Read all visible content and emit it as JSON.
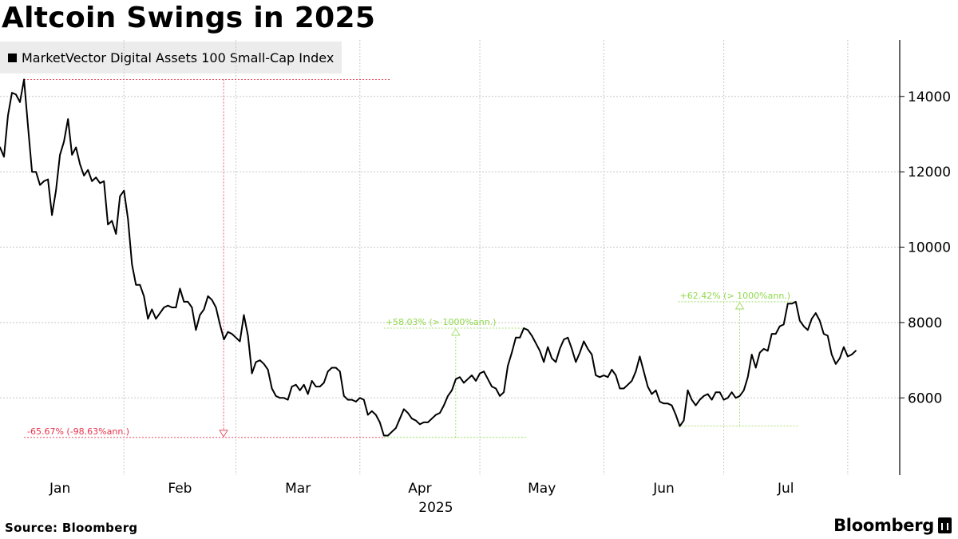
{
  "title": "Altcoin Swings in 2025",
  "legend": {
    "label": "MarketVector Digital Assets 100 Small-Cap Index",
    "swatch_color": "#000000"
  },
  "source": "Source: Bloomberg",
  "brand": "Bloomberg",
  "colors": {
    "line": "#000000",
    "grid": "#c8c8c8",
    "decline": "#e8324a",
    "rally": "#8fd94a"
  },
  "chart_data": {
    "type": "line",
    "title": "Altcoin Swings in 2025",
    "xlabel": "2025",
    "ylabel": "",
    "ylim": [
      3950,
      15500
    ],
    "xlim": [
      1,
      226
    ],
    "x_unit": "day of year 2025",
    "y_ticks": [
      6000,
      8000,
      10000,
      12000,
      14000
    ],
    "y_tick_labels": [
      "6000",
      "8000",
      "10000",
      "12000",
      "14000"
    ],
    "month_boundaries": [
      32,
      60,
      91,
      121,
      152,
      182,
      213
    ],
    "month_labels": [
      {
        "label": "Jan",
        "x": 16
      },
      {
        "label": "Feb",
        "x": 46
      },
      {
        "label": "Mar",
        "x": 75.5
      },
      {
        "label": "Apr",
        "x": 106
      },
      {
        "label": "May",
        "x": 136.5
      },
      {
        "label": "Jun",
        "x": 167
      },
      {
        "label": "Jul",
        "x": 197.5
      }
    ],
    "year_label": "2025",
    "grid": true,
    "legend_position": "top-left",
    "series": [
      {
        "name": "MarketVector Digital Assets 100 Small-Cap Index",
        "color": "#000000",
        "points": [
          [
            1,
            12650
          ],
          [
            2,
            12400
          ],
          [
            3,
            13500
          ],
          [
            4,
            14100
          ],
          [
            5,
            14050
          ],
          [
            6,
            13850
          ],
          [
            7,
            14450
          ],
          [
            8,
            13200
          ],
          [
            9,
            12000
          ],
          [
            10,
            12000
          ],
          [
            11,
            11650
          ],
          [
            12,
            11750
          ],
          [
            13,
            11800
          ],
          [
            14,
            10850
          ],
          [
            15,
            11500
          ],
          [
            16,
            12450
          ],
          [
            17,
            12800
          ],
          [
            18,
            13400
          ],
          [
            19,
            12450
          ],
          [
            20,
            12650
          ],
          [
            21,
            12200
          ],
          [
            22,
            11900
          ],
          [
            23,
            12050
          ],
          [
            24,
            11750
          ],
          [
            25,
            11850
          ],
          [
            26,
            11700
          ],
          [
            27,
            11750
          ],
          [
            28,
            10600
          ],
          [
            29,
            10700
          ],
          [
            30,
            10350
          ],
          [
            31,
            11350
          ],
          [
            32,
            11500
          ],
          [
            33,
            10750
          ],
          [
            34,
            9550
          ],
          [
            35,
            9000
          ],
          [
            36,
            9000
          ],
          [
            37,
            8700
          ],
          [
            38,
            8100
          ],
          [
            39,
            8350
          ],
          [
            40,
            8100
          ],
          [
            41,
            8250
          ],
          [
            42,
            8400
          ],
          [
            43,
            8450
          ],
          [
            44,
            8400
          ],
          [
            45,
            8400
          ],
          [
            46,
            8900
          ],
          [
            47,
            8550
          ],
          [
            48,
            8550
          ],
          [
            49,
            8400
          ],
          [
            50,
            7800
          ],
          [
            51,
            8200
          ],
          [
            52,
            8350
          ],
          [
            53,
            8700
          ],
          [
            54,
            8600
          ],
          [
            55,
            8400
          ],
          [
            56,
            7950
          ],
          [
            57,
            7550
          ],
          [
            58,
            7750
          ],
          [
            59,
            7700
          ],
          [
            60,
            7600
          ],
          [
            61,
            7500
          ],
          [
            62,
            8200
          ],
          [
            63,
            7650
          ],
          [
            64,
            6650
          ],
          [
            65,
            6950
          ],
          [
            66,
            7000
          ],
          [
            67,
            6900
          ],
          [
            68,
            6750
          ],
          [
            69,
            6250
          ],
          [
            70,
            6050
          ],
          [
            71,
            6000
          ],
          [
            72,
            6000
          ],
          [
            73,
            5950
          ],
          [
            74,
            6300
          ],
          [
            75,
            6350
          ],
          [
            76,
            6200
          ],
          [
            77,
            6350
          ],
          [
            78,
            6100
          ],
          [
            79,
            6450
          ],
          [
            80,
            6300
          ],
          [
            81,
            6300
          ],
          [
            82,
            6400
          ],
          [
            83,
            6700
          ],
          [
            84,
            6800
          ],
          [
            85,
            6800
          ],
          [
            86,
            6700
          ],
          [
            87,
            6050
          ],
          [
            88,
            5950
          ],
          [
            89,
            5950
          ],
          [
            90,
            5900
          ],
          [
            91,
            6000
          ],
          [
            92,
            5950
          ],
          [
            93,
            5550
          ],
          [
            94,
            5650
          ],
          [
            95,
            5550
          ],
          [
            96,
            5350
          ],
          [
            97,
            5000
          ],
          [
            98,
            5000
          ],
          [
            99,
            5100
          ],
          [
            100,
            5200
          ],
          [
            101,
            5450
          ],
          [
            102,
            5700
          ],
          [
            103,
            5600
          ],
          [
            104,
            5450
          ],
          [
            105,
            5400
          ],
          [
            106,
            5300
          ],
          [
            107,
            5350
          ],
          [
            108,
            5350
          ],
          [
            109,
            5450
          ],
          [
            110,
            5550
          ],
          [
            111,
            5600
          ],
          [
            112,
            5800
          ],
          [
            113,
            6050
          ],
          [
            114,
            6200
          ],
          [
            115,
            6500
          ],
          [
            116,
            6550
          ],
          [
            117,
            6400
          ],
          [
            118,
            6500
          ],
          [
            119,
            6600
          ],
          [
            120,
            6450
          ],
          [
            121,
            6650
          ],
          [
            122,
            6700
          ],
          [
            123,
            6500
          ],
          [
            124,
            6300
          ],
          [
            125,
            6250
          ],
          [
            126,
            6050
          ],
          [
            127,
            6150
          ],
          [
            128,
            6850
          ],
          [
            129,
            7200
          ],
          [
            130,
            7600
          ],
          [
            131,
            7600
          ],
          [
            132,
            7850
          ],
          [
            133,
            7800
          ],
          [
            134,
            7650
          ],
          [
            135,
            7450
          ],
          [
            136,
            7250
          ],
          [
            137,
            6950
          ],
          [
            138,
            7350
          ],
          [
            139,
            7050
          ],
          [
            140,
            6950
          ],
          [
            141,
            7300
          ],
          [
            142,
            7550
          ],
          [
            143,
            7600
          ],
          [
            144,
            7300
          ],
          [
            145,
            6950
          ],
          [
            146,
            7200
          ],
          [
            147,
            7500
          ],
          [
            148,
            7300
          ],
          [
            149,
            7150
          ],
          [
            150,
            6600
          ],
          [
            151,
            6550
          ],
          [
            152,
            6600
          ],
          [
            153,
            6550
          ],
          [
            154,
            6750
          ],
          [
            155,
            6600
          ],
          [
            156,
            6250
          ],
          [
            157,
            6250
          ],
          [
            158,
            6350
          ],
          [
            159,
            6450
          ],
          [
            160,
            6700
          ],
          [
            161,
            7100
          ],
          [
            162,
            6700
          ],
          [
            163,
            6300
          ],
          [
            164,
            6100
          ],
          [
            165,
            6200
          ],
          [
            166,
            5900
          ],
          [
            167,
            5850
          ],
          [
            168,
            5850
          ],
          [
            169,
            5800
          ],
          [
            170,
            5550
          ],
          [
            171,
            5250
          ],
          [
            172,
            5400
          ],
          [
            173,
            6200
          ],
          [
            174,
            5950
          ],
          [
            175,
            5800
          ],
          [
            176,
            5950
          ],
          [
            177,
            6050
          ],
          [
            178,
            6100
          ],
          [
            179,
            5950
          ],
          [
            180,
            6150
          ],
          [
            181,
            6150
          ],
          [
            182,
            5950
          ],
          [
            183,
            6000
          ],
          [
            184,
            6150
          ],
          [
            185,
            6000
          ],
          [
            186,
            6050
          ],
          [
            187,
            6200
          ],
          [
            188,
            6550
          ],
          [
            189,
            7150
          ],
          [
            190,
            6800
          ],
          [
            191,
            7200
          ],
          [
            192,
            7300
          ],
          [
            193,
            7250
          ],
          [
            194,
            7700
          ],
          [
            195,
            7700
          ],
          [
            196,
            7900
          ],
          [
            197,
            7950
          ],
          [
            198,
            8500
          ],
          [
            199,
            8500
          ],
          [
            200,
            8550
          ],
          [
            201,
            8050
          ],
          [
            202,
            7900
          ],
          [
            203,
            7800
          ],
          [
            204,
            8100
          ],
          [
            205,
            8250
          ],
          [
            206,
            8050
          ],
          [
            207,
            7700
          ],
          [
            208,
            7650
          ],
          [
            209,
            7150
          ],
          [
            210,
            6900
          ],
          [
            211,
            7050
          ],
          [
            212,
            7350
          ],
          [
            213,
            7100
          ],
          [
            214,
            7150
          ],
          [
            215,
            7250
          ]
        ]
      }
    ],
    "annotations": [
      {
        "kind": "decline",
        "text": "-65.67% (-98.63%ann.)",
        "from": {
          "x": 7,
          "y": 14450
        },
        "to": {
          "x": 97,
          "y": 4950
        },
        "color": "#e8324a"
      },
      {
        "kind": "rally",
        "text": "+58.03% (> 1000%ann.)",
        "from": {
          "x": 97,
          "y": 4950
        },
        "to": {
          "x": 132,
          "y": 7850
        },
        "color": "#8fd94a"
      },
      {
        "kind": "rally",
        "text": "+62.42% (> 1000%ann.)",
        "from": {
          "x": 171,
          "y": 5250
        },
        "to": {
          "x": 200,
          "y": 8550
        },
        "color": "#8fd94a"
      }
    ]
  }
}
